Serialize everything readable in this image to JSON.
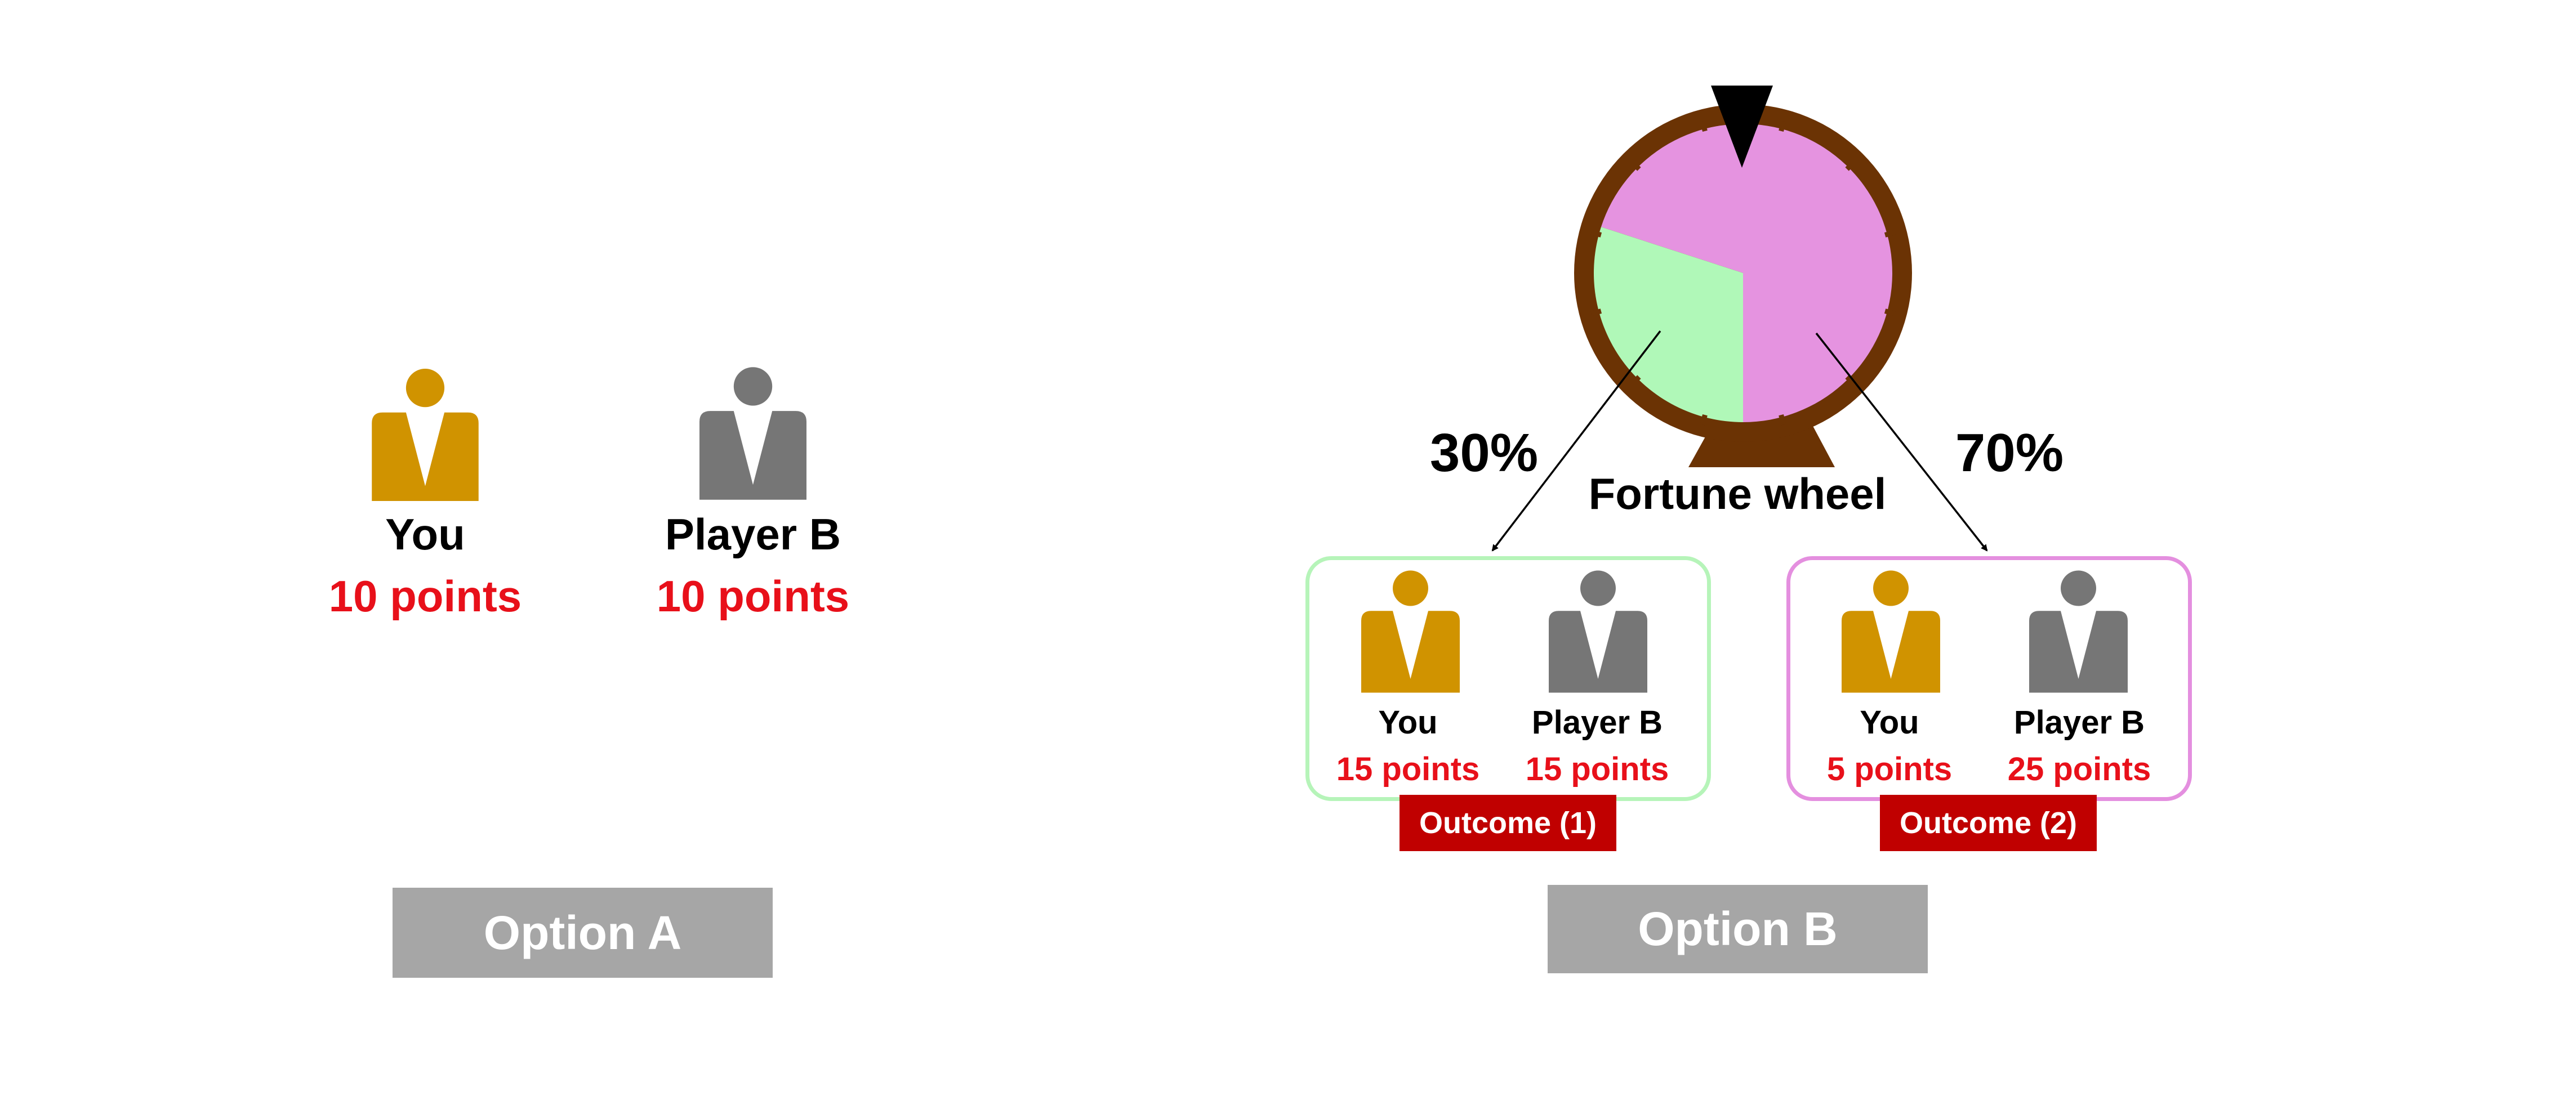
{
  "colors": {
    "you": "#d09300",
    "player_b": "#767676",
    "points": "#e8101a",
    "wheel_rim": "#6b3304",
    "wheel_green": "#b0f8b8",
    "wheel_pink": "#e593e0",
    "outcome1_border": "#b6f4b9",
    "outcome2_border": "#e48fdf",
    "tag_bg": "#c00000",
    "button_bg": "#a6a6a6"
  },
  "option_a": {
    "you": {
      "name": "You",
      "points": "10 points",
      "icon": "person-icon"
    },
    "player_b": {
      "name": "Player B",
      "points": "10 points",
      "icon": "person-icon"
    },
    "button": "Option A"
  },
  "option_b": {
    "wheel": {
      "label": "Fortune wheel",
      "green_share": 0.3,
      "pink_share": 0.7
    },
    "prob_left": "30%",
    "prob_right": "70%",
    "outcome1": {
      "tag": "Outcome (1)",
      "you": {
        "name": "You",
        "points": "15 points"
      },
      "player_b": {
        "name": "Player B",
        "points": "15 points"
      }
    },
    "outcome2": {
      "tag": "Outcome (2)",
      "you": {
        "name": "You",
        "points": "5 points"
      },
      "player_b": {
        "name": "Player B",
        "points": "25 points"
      }
    },
    "button": "Option B"
  }
}
